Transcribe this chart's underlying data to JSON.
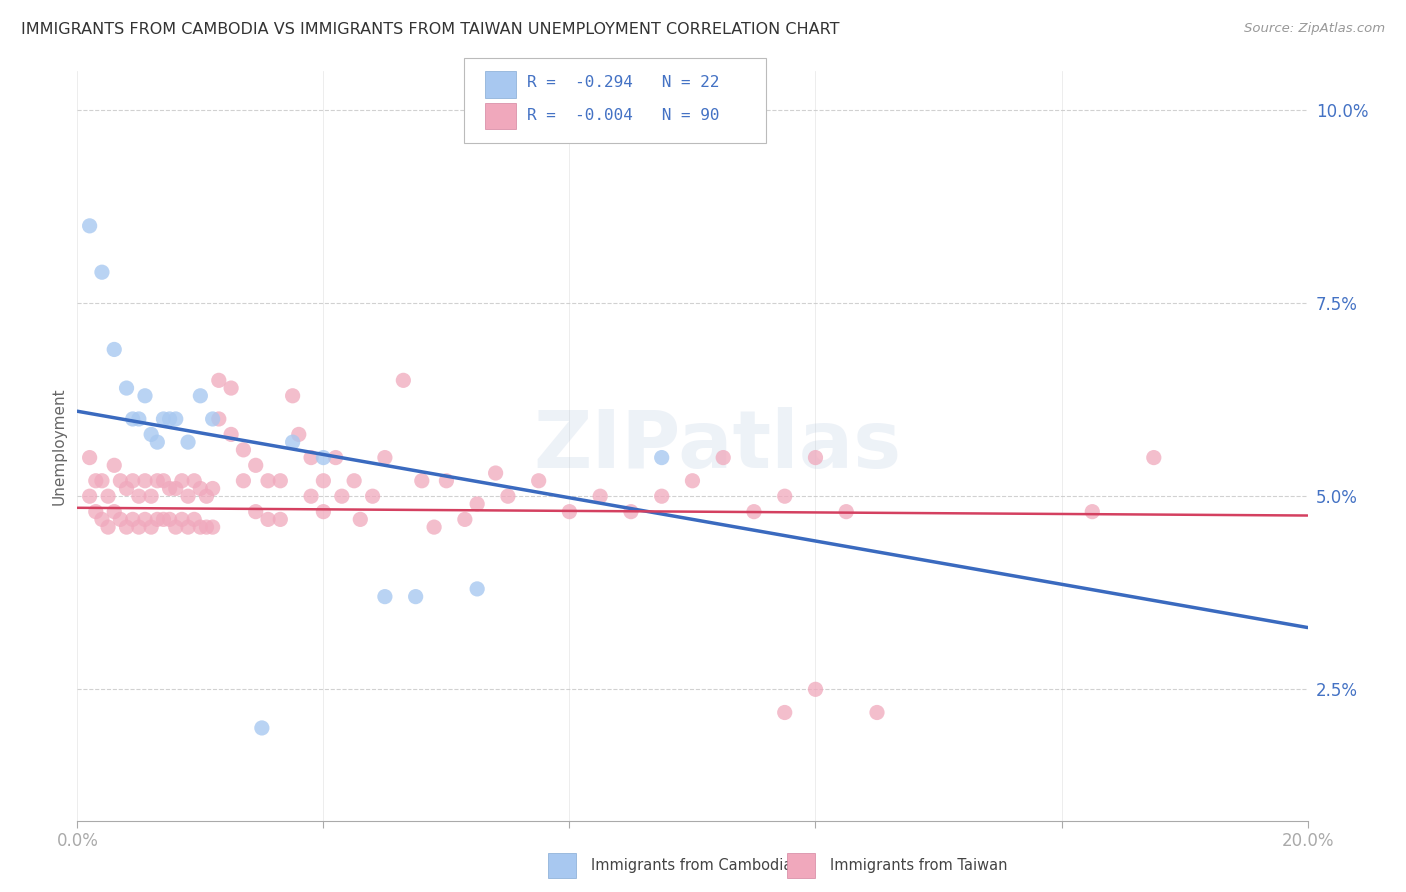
{
  "title": "IMMIGRANTS FROM CAMBODIA VS IMMIGRANTS FROM TAIWAN UNEMPLOYMENT CORRELATION CHART",
  "source": "Source: ZipAtlas.com",
  "ylabel": "Unemployment",
  "xlim": [
    0.0,
    0.2
  ],
  "ylim": [
    0.008,
    0.105
  ],
  "yticks": [
    0.025,
    0.05,
    0.075,
    0.1
  ],
  "ytick_labels": [
    "2.5%",
    "5.0%",
    "7.5%",
    "10.0%"
  ],
  "xticks": [
    0.0,
    0.04,
    0.08,
    0.12,
    0.16,
    0.2
  ],
  "xtick_labels_show": [
    "0.0%",
    "20.0%"
  ],
  "color_cambodia": "#a8c8f0",
  "color_cambodia_edge": "#85aad4",
  "color_taiwan": "#f0a8bc",
  "color_taiwan_edge": "#d485a0",
  "color_blue_line": "#3a6abf",
  "color_pink_line": "#d44060",
  "color_blue_text": "#4472c4",
  "color_axis": "#aaaaaa",
  "color_grid": "#cccccc",
  "title_color": "#333333",
  "watermark": "ZIPatlas",
  "cambodia_trend_y0": 0.061,
  "cambodia_trend_y1": 0.033,
  "taiwan_trend_y0": 0.0485,
  "taiwan_trend_y1": 0.0475,
  "cambodia_points": [
    [
      0.002,
      0.085
    ],
    [
      0.004,
      0.079
    ],
    [
      0.006,
      0.069
    ],
    [
      0.008,
      0.064
    ],
    [
      0.009,
      0.06
    ],
    [
      0.01,
      0.06
    ],
    [
      0.011,
      0.063
    ],
    [
      0.012,
      0.058
    ],
    [
      0.013,
      0.057
    ],
    [
      0.014,
      0.06
    ],
    [
      0.015,
      0.06
    ],
    [
      0.016,
      0.06
    ],
    [
      0.018,
      0.057
    ],
    [
      0.02,
      0.063
    ],
    [
      0.022,
      0.06
    ],
    [
      0.035,
      0.057
    ],
    [
      0.04,
      0.055
    ],
    [
      0.05,
      0.037
    ],
    [
      0.055,
      0.037
    ],
    [
      0.095,
      0.055
    ],
    [
      0.03,
      0.02
    ],
    [
      0.065,
      0.038
    ]
  ],
  "taiwan_points": [
    [
      0.002,
      0.055
    ],
    [
      0.002,
      0.05
    ],
    [
      0.003,
      0.052
    ],
    [
      0.003,
      0.048
    ],
    [
      0.004,
      0.052
    ],
    [
      0.004,
      0.047
    ],
    [
      0.005,
      0.05
    ],
    [
      0.005,
      0.046
    ],
    [
      0.006,
      0.054
    ],
    [
      0.006,
      0.048
    ],
    [
      0.007,
      0.052
    ],
    [
      0.007,
      0.047
    ],
    [
      0.008,
      0.051
    ],
    [
      0.008,
      0.046
    ],
    [
      0.009,
      0.052
    ],
    [
      0.009,
      0.047
    ],
    [
      0.01,
      0.05
    ],
    [
      0.01,
      0.046
    ],
    [
      0.011,
      0.052
    ],
    [
      0.011,
      0.047
    ],
    [
      0.012,
      0.05
    ],
    [
      0.012,
      0.046
    ],
    [
      0.013,
      0.052
    ],
    [
      0.013,
      0.047
    ],
    [
      0.014,
      0.052
    ],
    [
      0.014,
      0.047
    ],
    [
      0.015,
      0.051
    ],
    [
      0.015,
      0.047
    ],
    [
      0.016,
      0.051
    ],
    [
      0.016,
      0.046
    ],
    [
      0.017,
      0.052
    ],
    [
      0.017,
      0.047
    ],
    [
      0.018,
      0.05
    ],
    [
      0.018,
      0.046
    ],
    [
      0.019,
      0.052
    ],
    [
      0.019,
      0.047
    ],
    [
      0.02,
      0.051
    ],
    [
      0.02,
      0.046
    ],
    [
      0.021,
      0.05
    ],
    [
      0.021,
      0.046
    ],
    [
      0.022,
      0.051
    ],
    [
      0.022,
      0.046
    ],
    [
      0.023,
      0.065
    ],
    [
      0.023,
      0.06
    ],
    [
      0.025,
      0.064
    ],
    [
      0.025,
      0.058
    ],
    [
      0.027,
      0.056
    ],
    [
      0.027,
      0.052
    ],
    [
      0.029,
      0.054
    ],
    [
      0.029,
      0.048
    ],
    [
      0.031,
      0.052
    ],
    [
      0.031,
      0.047
    ],
    [
      0.033,
      0.052
    ],
    [
      0.033,
      0.047
    ],
    [
      0.035,
      0.063
    ],
    [
      0.036,
      0.058
    ],
    [
      0.038,
      0.055
    ],
    [
      0.038,
      0.05
    ],
    [
      0.04,
      0.052
    ],
    [
      0.04,
      0.048
    ],
    [
      0.042,
      0.055
    ],
    [
      0.043,
      0.05
    ],
    [
      0.045,
      0.052
    ],
    [
      0.046,
      0.047
    ],
    [
      0.048,
      0.05
    ],
    [
      0.05,
      0.055
    ],
    [
      0.053,
      0.065
    ],
    [
      0.056,
      0.052
    ],
    [
      0.058,
      0.046
    ],
    [
      0.06,
      0.052
    ],
    [
      0.063,
      0.047
    ],
    [
      0.065,
      0.049
    ],
    [
      0.068,
      0.053
    ],
    [
      0.07,
      0.05
    ],
    [
      0.075,
      0.052
    ],
    [
      0.08,
      0.048
    ],
    [
      0.085,
      0.05
    ],
    [
      0.09,
      0.048
    ],
    [
      0.095,
      0.05
    ],
    [
      0.1,
      0.052
    ],
    [
      0.105,
      0.055
    ],
    [
      0.11,
      0.048
    ],
    [
      0.115,
      0.05
    ],
    [
      0.12,
      0.055
    ],
    [
      0.125,
      0.048
    ],
    [
      0.115,
      0.022
    ],
    [
      0.12,
      0.025
    ],
    [
      0.13,
      0.022
    ],
    [
      0.165,
      0.048
    ],
    [
      0.175,
      0.055
    ]
  ]
}
